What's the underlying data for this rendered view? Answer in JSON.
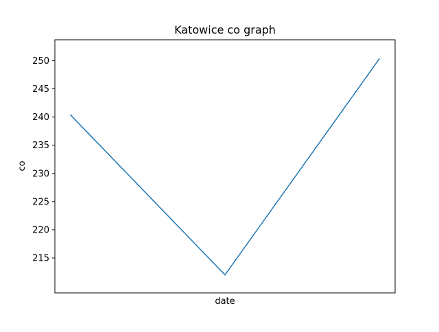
{
  "chart_data": {
    "type": "line",
    "title": "Katowice co graph",
    "xlabel": "date",
    "ylabel": "co",
    "x": [
      0,
      1,
      2
    ],
    "x_tick_labels_visible": false,
    "series": [
      {
        "values": [
          240.4,
          212.0,
          250.4
        ],
        "color": "#1f77b4"
      }
    ],
    "ylim": [
      208.8,
      253.7
    ],
    "yticks": [
      215,
      220,
      225,
      230,
      235,
      240,
      245,
      250
    ],
    "ytick_labels": [
      "215",
      "220",
      "225",
      "230",
      "235",
      "240",
      "245",
      "250"
    ],
    "grid": false,
    "legend": "none"
  }
}
